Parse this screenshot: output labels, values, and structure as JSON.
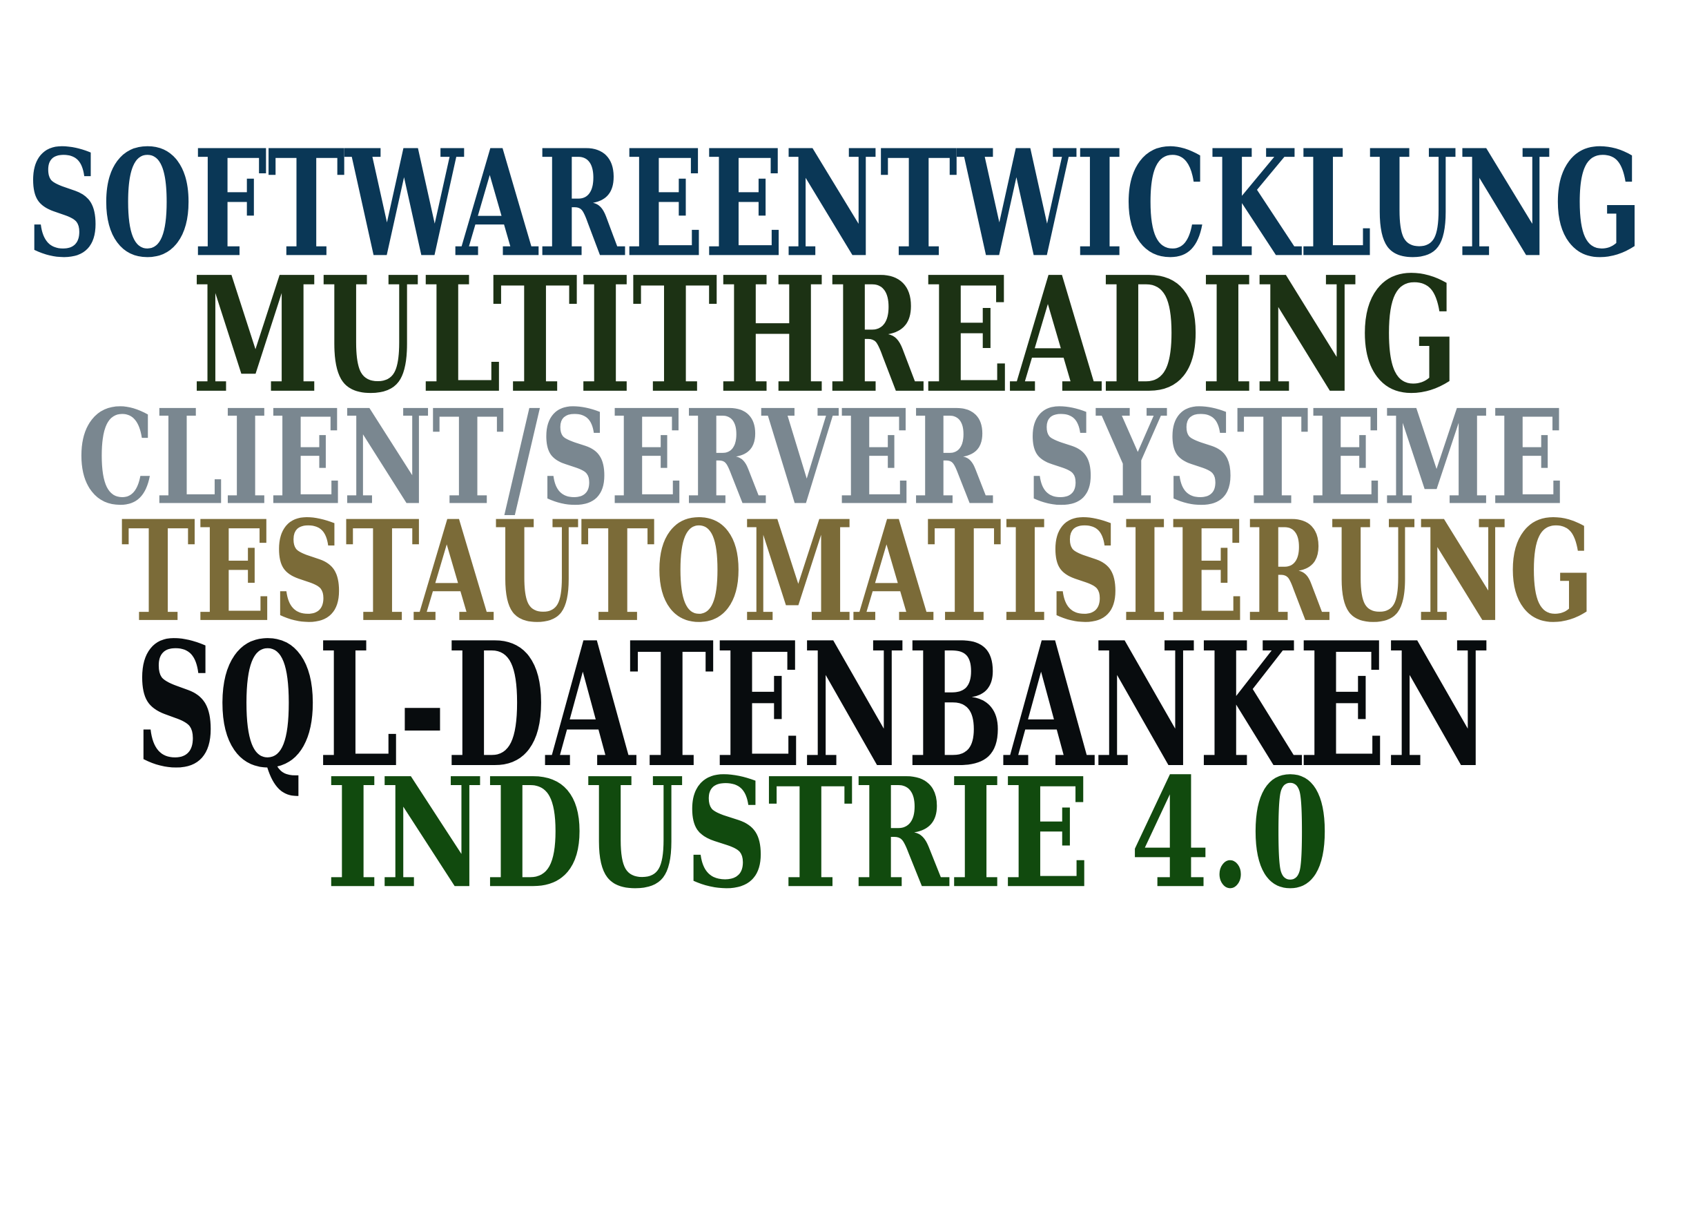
{
  "words": [
    {
      "text": "SOFTWAREENTWICKLUNG",
      "color": "#0a3756"
    },
    {
      "text": "MULTITHREADING",
      "color": "#1c3214"
    },
    {
      "text": "CLIENT/SERVER SYSTEME",
      "color": "#7a8790"
    },
    {
      "text": "TESTAUTOMATISIERUNG",
      "color": "#7b6b38"
    },
    {
      "text": "SQL-DATENBANKEN",
      "color": "#080c0e"
    },
    {
      "text": "INDUSTRIE 4.0",
      "color": "#114a0e"
    }
  ]
}
